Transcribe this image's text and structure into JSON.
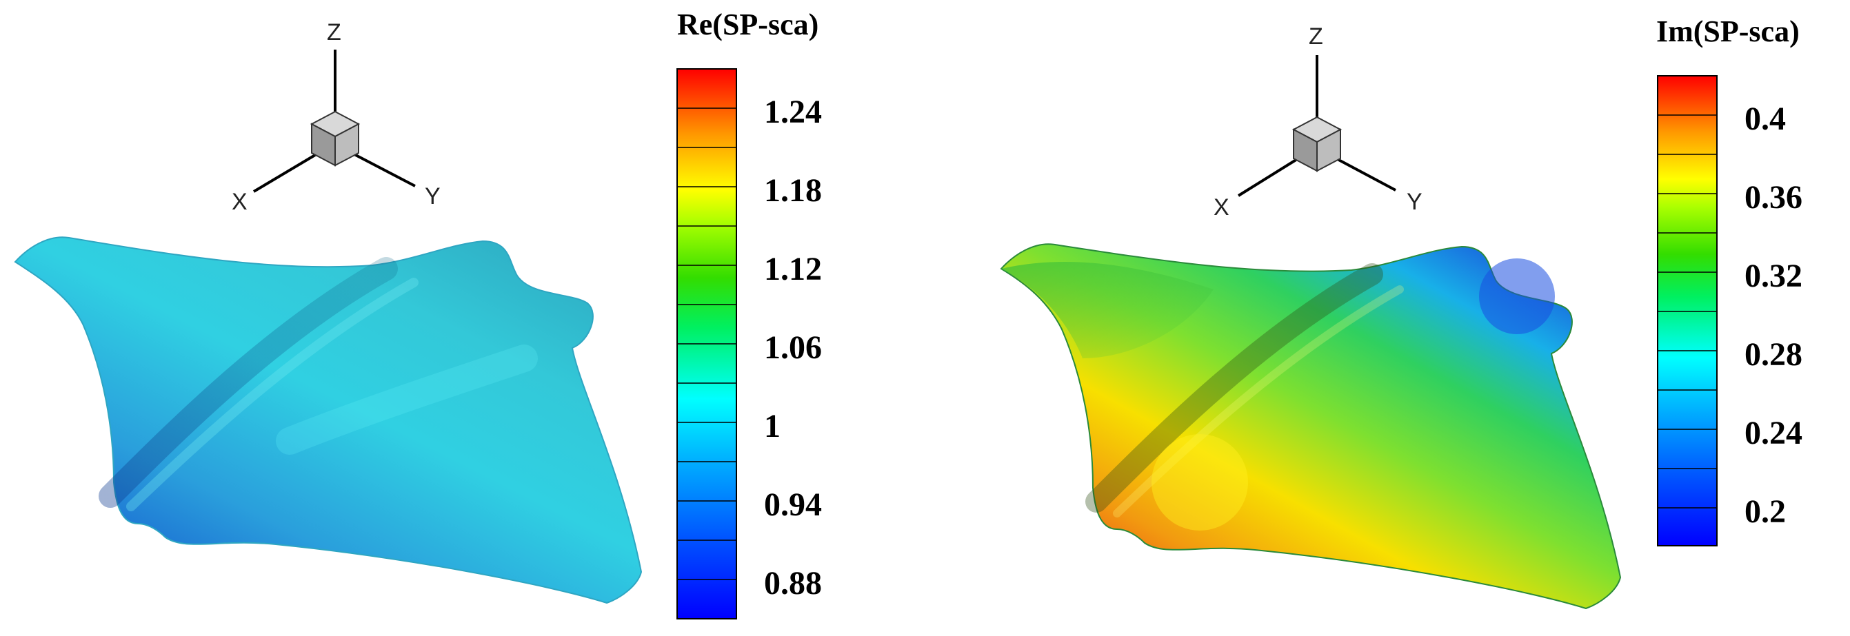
{
  "left": {
    "colorbar": {
      "title": "Re(SP-sca)",
      "ticks": [
        "1.24",
        "1.18",
        "1.12",
        "1.06",
        "1",
        "0.94",
        "0.88"
      ]
    },
    "axes": {
      "z": "Z",
      "x": "X",
      "y": "Y"
    }
  },
  "right": {
    "colorbar": {
      "title": "Im(SP-sca)",
      "ticks": [
        "0.4",
        "0.36",
        "0.32",
        "0.28",
        "0.24",
        "0.2"
      ]
    },
    "axes": {
      "z": "Z",
      "x": "X",
      "y": "Y"
    }
  },
  "colors": {
    "rainbow": [
      "#0000ff",
      "#0055ff",
      "#00aaff",
      "#00ffff",
      "#00ff66",
      "#33cc00",
      "#99ff00",
      "#ffff00",
      "#ffaa00",
      "#ff5500",
      "#ff0000"
    ],
    "left_surface": [
      "#1a6fd6",
      "#29a9dc",
      "#2fd4e0",
      "#35e6e8"
    ],
    "right_surface": [
      "#e23a12",
      "#f8d300",
      "#4fd84a",
      "#1a8cf0",
      "#1a4fe0"
    ]
  }
}
